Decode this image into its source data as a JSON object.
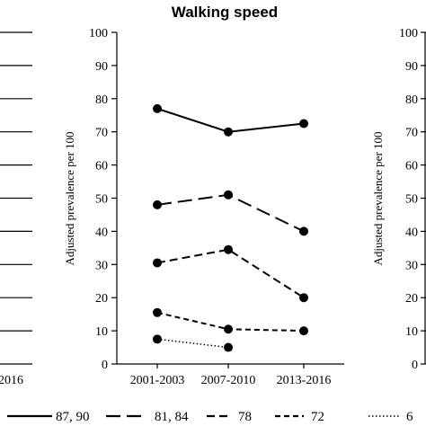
{
  "chart_data": {
    "type": "line",
    "title": "Walking speed",
    "ylabel": "Adjusted prevalence per 100",
    "right_panel_ylabel": "Adjusted prevalence per 100",
    "left_panel_last_x": "2016",
    "right_panel_cut_legend": "6",
    "categories": [
      "2001-2003",
      "2007-2010",
      "2013-2016"
    ],
    "ylim": [
      0,
      100
    ],
    "yticks": [
      "0",
      "10",
      "20",
      "30",
      "40",
      "50",
      "60",
      "70",
      "80",
      "90",
      "100"
    ],
    "grid": false,
    "legend_position": "bottom",
    "series": [
      {
        "name": "87, 90",
        "values": [
          77,
          70,
          72.5
        ],
        "dash": "solid"
      },
      {
        "name": "81, 84",
        "values": [
          48,
          51,
          40
        ],
        "dash": "long-dash"
      },
      {
        "name": "78",
        "values": [
          30.5,
          34.5,
          20
        ],
        "dash": "dash"
      },
      {
        "name": "72",
        "values": [
          15.5,
          10.5,
          10
        ],
        "dash": "short-dash"
      },
      {
        "name": "6",
        "values": [
          7.5,
          5,
          null
        ],
        "dash": "dotted"
      }
    ]
  }
}
